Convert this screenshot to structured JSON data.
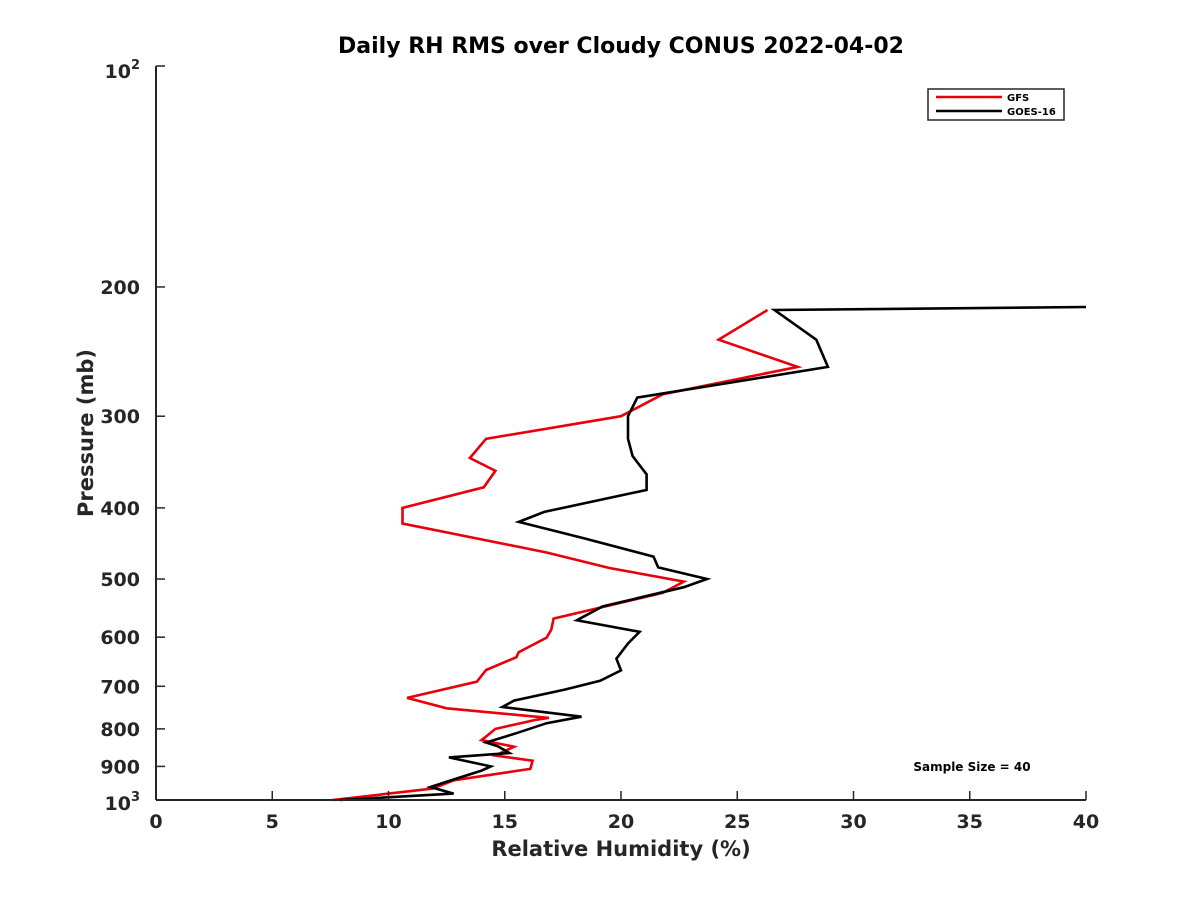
{
  "chart_data": {
    "type": "line",
    "title": "Daily RH RMS over Cloudy CONUS 2022-04-02",
    "xlabel": "Relative Humidity (%)",
    "ylabel": "Pressure (mb)",
    "xlim": [
      0,
      40
    ],
    "ylim": [
      100,
      1000
    ],
    "y_scale": "log",
    "y_reversed": true,
    "x_ticks": [
      0,
      5,
      10,
      15,
      20,
      25,
      30,
      35,
      40
    ],
    "x_tick_labels": [
      "0",
      "5",
      "10",
      "15",
      "20",
      "25",
      "30",
      "35",
      "40"
    ],
    "y_ticks": [
      200,
      300,
      400,
      500,
      600,
      700,
      800,
      900
    ],
    "y_tick_labels": [
      "200",
      "300",
      "400",
      "500",
      "600",
      "700",
      "800",
      "900"
    ],
    "y_tick_top": {
      "base": "10",
      "exp": "2"
    },
    "y_tick_bottom": {
      "base": "10",
      "exp": "3"
    },
    "grid": false,
    "legend_position": "top-right",
    "annotation": "Sample Size = 40",
    "series": [
      {
        "name": "GFS",
        "color": "#e8000b",
        "points": [
          [
            26.3,
            215
          ],
          [
            24.2,
            236
          ],
          [
            27.6,
            257
          ],
          [
            21.8,
            280
          ],
          [
            20.0,
            300
          ],
          [
            14.2,
            322
          ],
          [
            13.5,
            342
          ],
          [
            14.6,
            356
          ],
          [
            14.1,
            375
          ],
          [
            10.6,
            400
          ],
          [
            10.6,
            420
          ],
          [
            16.8,
            460
          ],
          [
            19.5,
            483
          ],
          [
            22.7,
            504
          ],
          [
            21.8,
            522
          ],
          [
            17.1,
            566
          ],
          [
            17.0,
            586
          ],
          [
            16.8,
            601
          ],
          [
            15.6,
            629
          ],
          [
            15.5,
            639
          ],
          [
            14.2,
            665
          ],
          [
            13.8,
            690
          ],
          [
            10.8,
            726
          ],
          [
            12.5,
            750
          ],
          [
            16.9,
            773
          ],
          [
            16.3,
            778
          ],
          [
            14.6,
            800
          ],
          [
            14.0,
            829
          ],
          [
            15.4,
            846
          ],
          [
            14.6,
            870
          ],
          [
            16.2,
            884
          ],
          [
            16.1,
            907
          ],
          [
            12.8,
            940
          ],
          [
            11.9,
            965
          ],
          [
            7.6,
            1000
          ]
        ]
      },
      {
        "name": "GOES-16",
        "color": "#000000",
        "points": [
          [
            40.0,
            213
          ],
          [
            26.6,
            215
          ],
          [
            28.4,
            236
          ],
          [
            28.9,
            257
          ],
          [
            20.7,
            283
          ],
          [
            20.3,
            300
          ],
          [
            20.3,
            322
          ],
          [
            20.5,
            340
          ],
          [
            21.1,
            360
          ],
          [
            21.1,
            378
          ],
          [
            16.7,
            405
          ],
          [
            15.6,
            418
          ],
          [
            18.4,
            440
          ],
          [
            21.4,
            466
          ],
          [
            21.6,
            482
          ],
          [
            23.7,
            500
          ],
          [
            22.7,
            513
          ],
          [
            19.2,
            545
          ],
          [
            18.1,
            569
          ],
          [
            20.8,
            590
          ],
          [
            20.3,
            612
          ],
          [
            19.8,
            642
          ],
          [
            20.0,
            666
          ],
          [
            19.1,
            688
          ],
          [
            17.6,
            707
          ],
          [
            15.4,
            732
          ],
          [
            14.9,
            747
          ],
          [
            18.3,
            770
          ],
          [
            16.8,
            786
          ],
          [
            15.5,
            811
          ],
          [
            14.2,
            835
          ],
          [
            14.7,
            845
          ],
          [
            15.2,
            863
          ],
          [
            12.6,
            875
          ],
          [
            14.4,
            900
          ],
          [
            14.0,
            912
          ],
          [
            12.6,
            942
          ],
          [
            11.8,
            960
          ],
          [
            12.8,
            980
          ],
          [
            7.9,
            1000
          ]
        ]
      }
    ]
  }
}
